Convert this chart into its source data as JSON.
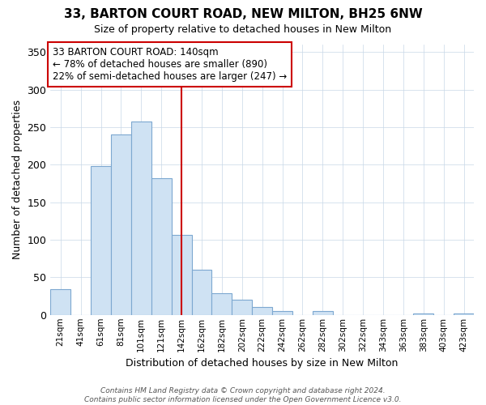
{
  "title": "33, BARTON COURT ROAD, NEW MILTON, BH25 6NW",
  "subtitle": "Size of property relative to detached houses in New Milton",
  "xlabel": "Distribution of detached houses by size in New Milton",
  "ylabel": "Number of detached properties",
  "bar_labels": [
    "21sqm",
    "41sqm",
    "61sqm",
    "81sqm",
    "101sqm",
    "121sqm",
    "142sqm",
    "162sqm",
    "182sqm",
    "202sqm",
    "222sqm",
    "242sqm",
    "262sqm",
    "282sqm",
    "302sqm",
    "322sqm",
    "343sqm",
    "363sqm",
    "383sqm",
    "403sqm",
    "423sqm"
  ],
  "bar_values": [
    34,
    0,
    198,
    240,
    258,
    182,
    107,
    60,
    29,
    20,
    10,
    5,
    0,
    5,
    0,
    0,
    0,
    0,
    2,
    0,
    2
  ],
  "bar_color": "#cfe2f3",
  "bar_edge_color": "#7da8d0",
  "vline_x": 6,
  "vline_color": "#cc0000",
  "ylim": [
    0,
    360
  ],
  "yticks": [
    0,
    50,
    100,
    150,
    200,
    250,
    300,
    350
  ],
  "annotation_title": "33 BARTON COURT ROAD: 140sqm",
  "annotation_line1": "← 78% of detached houses are smaller (890)",
  "annotation_line2": "22% of semi-detached houses are larger (247) →",
  "annotation_box_color": "#ffffff",
  "annotation_box_edge": "#cc0000",
  "footer_line1": "Contains HM Land Registry data © Crown copyright and database right 2024.",
  "footer_line2": "Contains public sector information licensed under the Open Government Licence v3.0.",
  "bg_color": "#ffffff",
  "grid_color": "#c8d8e8"
}
